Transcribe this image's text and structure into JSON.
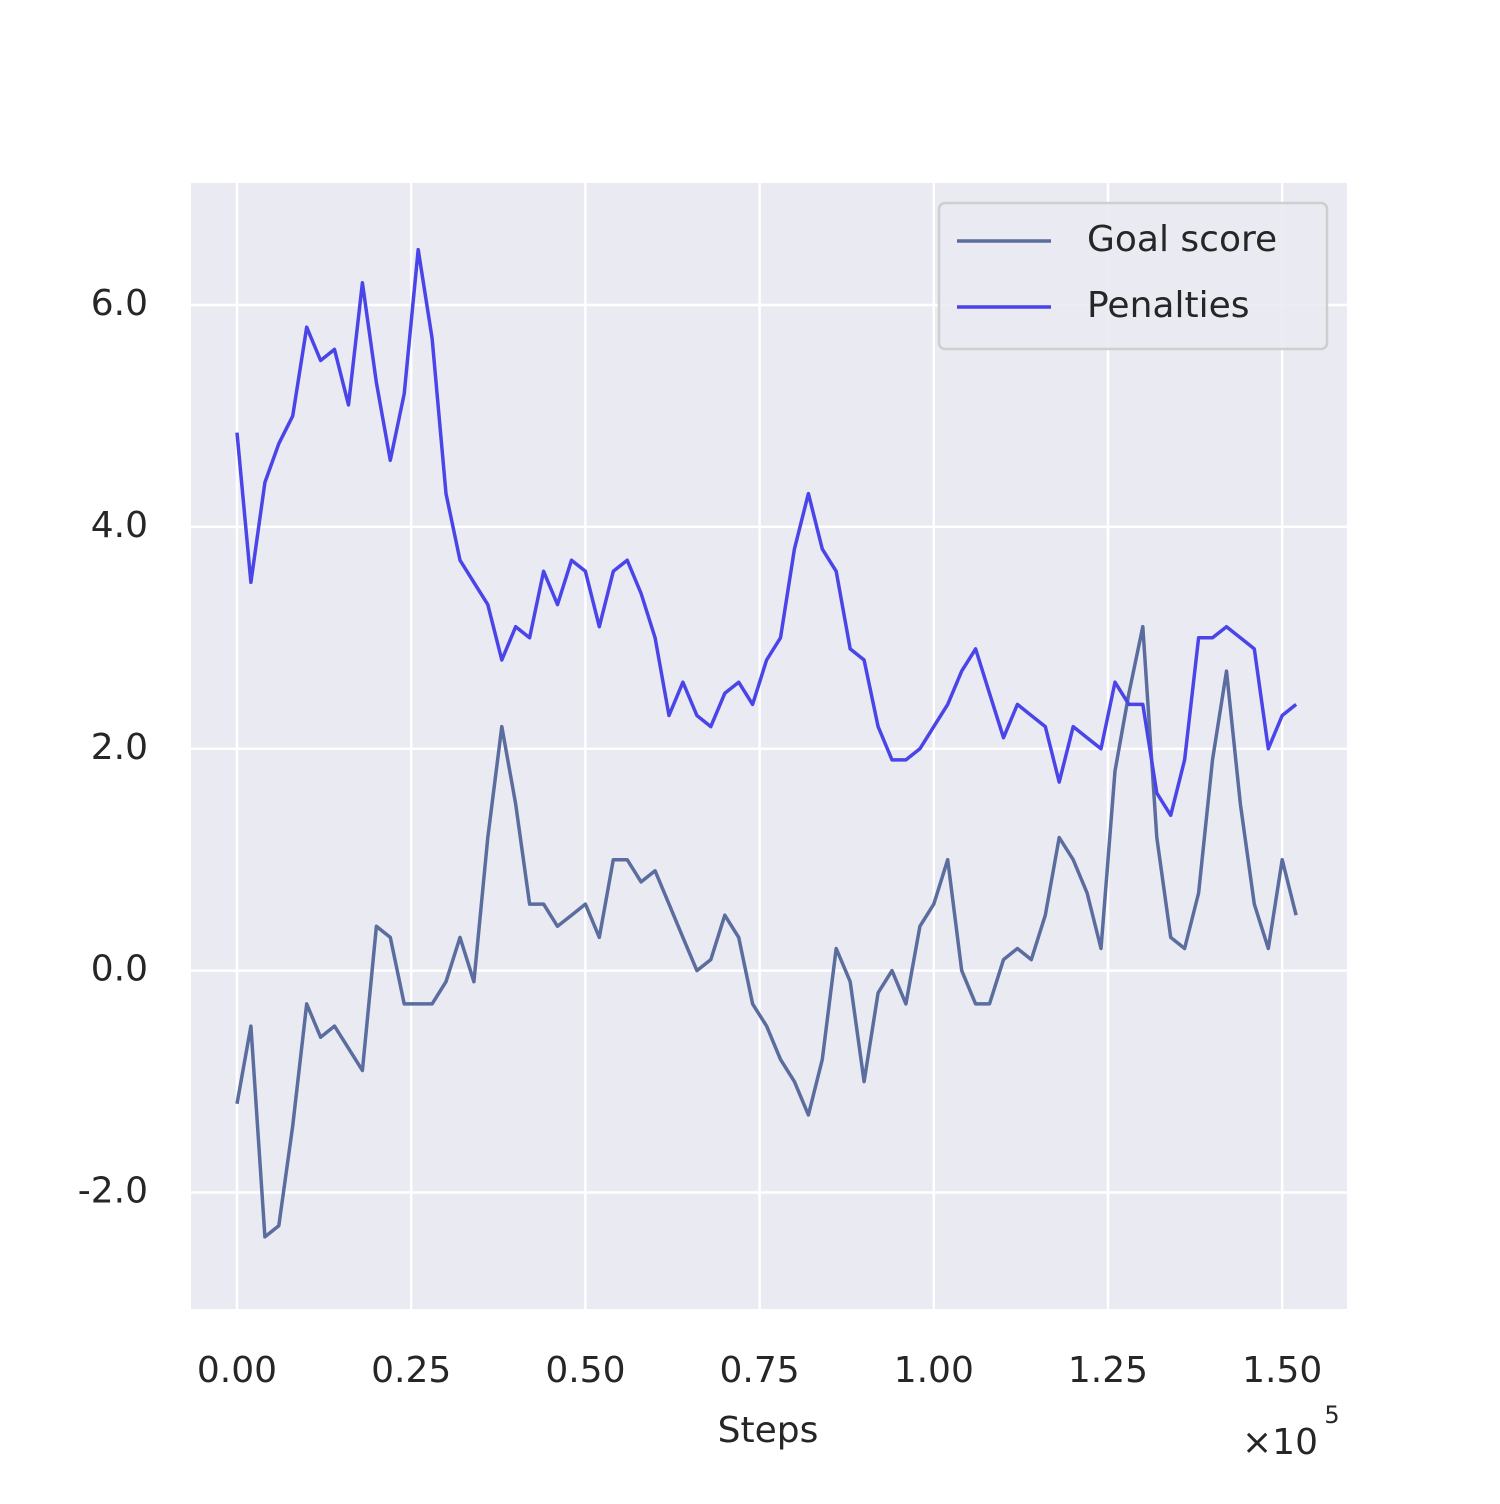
{
  "chart_data": {
    "type": "line",
    "xlabel": "Steps",
    "x_multiplier": {
      "base": "×10",
      "exponent": "5"
    },
    "x": [
      0.0,
      0.02,
      0.04,
      0.06,
      0.08,
      0.1,
      0.12,
      0.14,
      0.16,
      0.18,
      0.2,
      0.22,
      0.24,
      0.26,
      0.28,
      0.3,
      0.32,
      0.34,
      0.36,
      0.38,
      0.4,
      0.42,
      0.44,
      0.46,
      0.48,
      0.5,
      0.52,
      0.54,
      0.56,
      0.58,
      0.6,
      0.62,
      0.64,
      0.66,
      0.68,
      0.7,
      0.72,
      0.74,
      0.76,
      0.78,
      0.8,
      0.82,
      0.84,
      0.86,
      0.88,
      0.9,
      0.92,
      0.94,
      0.96,
      0.98,
      1.0,
      1.02,
      1.04,
      1.06,
      1.08,
      1.1,
      1.12,
      1.14,
      1.16,
      1.18,
      1.2,
      1.22,
      1.24,
      1.26,
      1.28,
      1.3,
      1.32,
      1.34,
      1.36,
      1.38,
      1.4,
      1.42,
      1.44,
      1.46,
      1.48,
      1.5,
      1.52
    ],
    "series": [
      {
        "name": "Goal score",
        "color": "#5a6d9e",
        "values": [
          -1.2,
          -0.5,
          -2.4,
          -2.3,
          -1.4,
          -0.3,
          -0.6,
          -0.5,
          -0.7,
          -0.9,
          0.4,
          0.3,
          -0.3,
          -0.3,
          -0.3,
          -0.1,
          0.3,
          -0.1,
          1.2,
          2.2,
          1.5,
          0.6,
          0.6,
          0.4,
          0.5,
          0.6,
          0.3,
          1.0,
          1.0,
          0.8,
          0.9,
          0.6,
          0.3,
          0.0,
          0.1,
          0.5,
          0.3,
          -0.3,
          -0.5,
          -0.8,
          -1.0,
          -1.3,
          -0.8,
          0.2,
          -0.1,
          -1.0,
          -0.2,
          0.0,
          -0.3,
          0.4,
          0.6,
          1.0,
          0.0,
          -0.3,
          -0.3,
          0.1,
          0.2,
          0.1,
          0.5,
          1.2,
          1.0,
          0.7,
          0.2,
          1.8,
          2.5,
          3.1,
          1.2,
          0.3,
          0.2,
          0.7,
          1.9,
          2.7,
          1.5,
          0.6,
          0.2,
          1.0,
          0.5
        ]
      },
      {
        "name": "Penalties",
        "color": "#4a45e8",
        "values": [
          4.85,
          3.5,
          4.4,
          4.75,
          5.0,
          5.8,
          5.5,
          5.6,
          5.1,
          6.2,
          5.3,
          4.6,
          5.2,
          6.5,
          5.7,
          4.3,
          3.7,
          3.5,
          3.3,
          2.8,
          3.1,
          3.0,
          3.6,
          3.3,
          3.7,
          3.6,
          3.1,
          3.6,
          3.7,
          3.4,
          3.0,
          2.3,
          2.6,
          2.3,
          2.2,
          2.5,
          2.6,
          2.4,
          2.8,
          3.0,
          3.8,
          4.3,
          3.8,
          3.6,
          2.9,
          2.8,
          2.2,
          1.9,
          1.9,
          2.0,
          2.2,
          2.4,
          2.7,
          2.9,
          2.5,
          2.1,
          2.4,
          2.3,
          2.2,
          1.7,
          2.2,
          2.1,
          2.0,
          2.6,
          2.4,
          2.4,
          1.6,
          1.4,
          1.9,
          3.0,
          3.0,
          3.1,
          3.0,
          2.9,
          2.0,
          2.3,
          2.4
        ]
      }
    ],
    "xlim": [
      -0.066,
      1.593
    ],
    "ylim": [
      -3.05,
      7.1
    ],
    "xticks": [
      {
        "value": 0,
        "label": "0.00"
      },
      {
        "value": 0.25,
        "label": "0.25"
      },
      {
        "value": 0.5,
        "label": "0.50"
      },
      {
        "value": 0.75,
        "label": "0.75"
      },
      {
        "value": 1,
        "label": "1.00"
      },
      {
        "value": 1.25,
        "label": "1.25"
      },
      {
        "value": 1.5,
        "label": "1.50"
      }
    ],
    "yticks": [
      {
        "value": -2,
        "label": "-2.0"
      },
      {
        "value": 0,
        "label": "0.0"
      },
      {
        "value": 2,
        "label": "2.0"
      },
      {
        "value": 4,
        "label": "4.0"
      },
      {
        "value": 6,
        "label": "6.0"
      }
    ],
    "grid": true,
    "legend": "upper-right"
  }
}
